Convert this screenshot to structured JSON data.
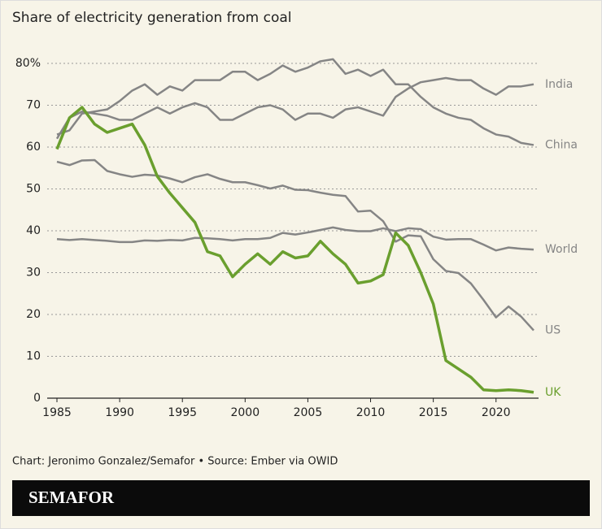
{
  "chart_data": {
    "type": "line",
    "title": "Share of electricity generation from coal",
    "x": [
      1985,
      1986,
      1987,
      1988,
      1989,
      1990,
      1991,
      1992,
      1993,
      1994,
      1995,
      1996,
      1997,
      1998,
      1999,
      2000,
      2001,
      2002,
      2003,
      2004,
      2005,
      2006,
      2007,
      2008,
      2009,
      2010,
      2011,
      2012,
      2013,
      2014,
      2015,
      2016,
      2017,
      2018,
      2019,
      2020,
      2021,
      2022,
      2023
    ],
    "xlim": [
      1985,
      2023
    ],
    "xticks": [
      1985,
      1990,
      1995,
      2000,
      2005,
      2010,
      2015,
      2020
    ],
    "ylim": [
      0,
      80
    ],
    "yticks": [
      0,
      10,
      20,
      30,
      40,
      50,
      60,
      70,
      {
        "value": 80,
        "label": "80%"
      }
    ],
    "grid": true,
    "series": [
      {
        "name": "India",
        "color": "#858585",
        "values": [
          62,
          67,
          68.5,
          68,
          67.5,
          66.5,
          66.5,
          68,
          69.5,
          68,
          69.5,
          70.5,
          69.5,
          66.5,
          66.5,
          68,
          69.5,
          70,
          69,
          66.5,
          68,
          68,
          67,
          69,
          69.5,
          68.5,
          67.5,
          72,
          74,
          75.5,
          76,
          76.5,
          76,
          76,
          74,
          72.5,
          74.5,
          74.5,
          75
        ]
      },
      {
        "name": "China",
        "color": "#858585",
        "values": [
          63,
          64,
          68,
          68.5,
          69,
          71,
          73.5,
          75,
          72.5,
          74.5,
          73.5,
          76,
          76,
          76,
          78,
          78,
          76,
          77.5,
          79.5,
          78,
          79,
          80.5,
          81,
          77.5,
          78.5,
          77,
          78.5,
          75,
          75,
          72,
          69.5,
          68,
          67,
          66.5,
          64.5,
          63,
          62.5,
          61,
          60.5
        ]
      },
      {
        "name": "World",
        "color": "#858585",
        "values": [
          38,
          37.8,
          38,
          37.8,
          37.6,
          37.3,
          37.3,
          37.7,
          37.6,
          37.8,
          37.7,
          38.3,
          38.2,
          38,
          37.7,
          38,
          38,
          38.3,
          39.5,
          39.1,
          39.6,
          40.2,
          40.8,
          40.2,
          39.9,
          39.9,
          40.6,
          39.9,
          40.6,
          40.4,
          38.6,
          37.9,
          38,
          38,
          36.7,
          35.3,
          36,
          35.7,
          35.5
        ]
      },
      {
        "name": "US",
        "color": "#858585",
        "values": [
          56.5,
          55.7,
          56.8,
          56.9,
          54.3,
          53.5,
          52.9,
          53.4,
          53.2,
          52.5,
          51.6,
          52.8,
          53.5,
          52.4,
          51.6,
          51.6,
          50.9,
          50.1,
          50.8,
          49.8,
          49.7,
          49.1,
          48.6,
          48.3,
          44.6,
          44.8,
          42.3,
          37.4,
          38.9,
          38.7,
          33.2,
          30.4,
          29.9,
          27.4,
          23.5,
          19.3,
          21.9,
          19.5,
          16.2
        ]
      },
      {
        "name": "UK",
        "color": "#6a9f2e",
        "values": [
          59.5,
          67,
          69.5,
          65.5,
          63.5,
          64.5,
          65.5,
          60.5,
          53,
          49,
          45.5,
          42,
          35,
          34,
          29,
          32,
          34.5,
          32,
          35,
          33.5,
          34,
          37.5,
          34.5,
          32,
          27.5,
          28,
          29.5,
          39.5,
          36.5,
          30,
          22.5,
          9,
          7,
          5,
          2,
          1.8,
          2,
          1.8,
          1.4
        ]
      }
    ]
  },
  "source": "Chart: Jeronimo Gonzalez/Semafor • Source: Ember via OWID",
  "brand": "SEMAFOR"
}
